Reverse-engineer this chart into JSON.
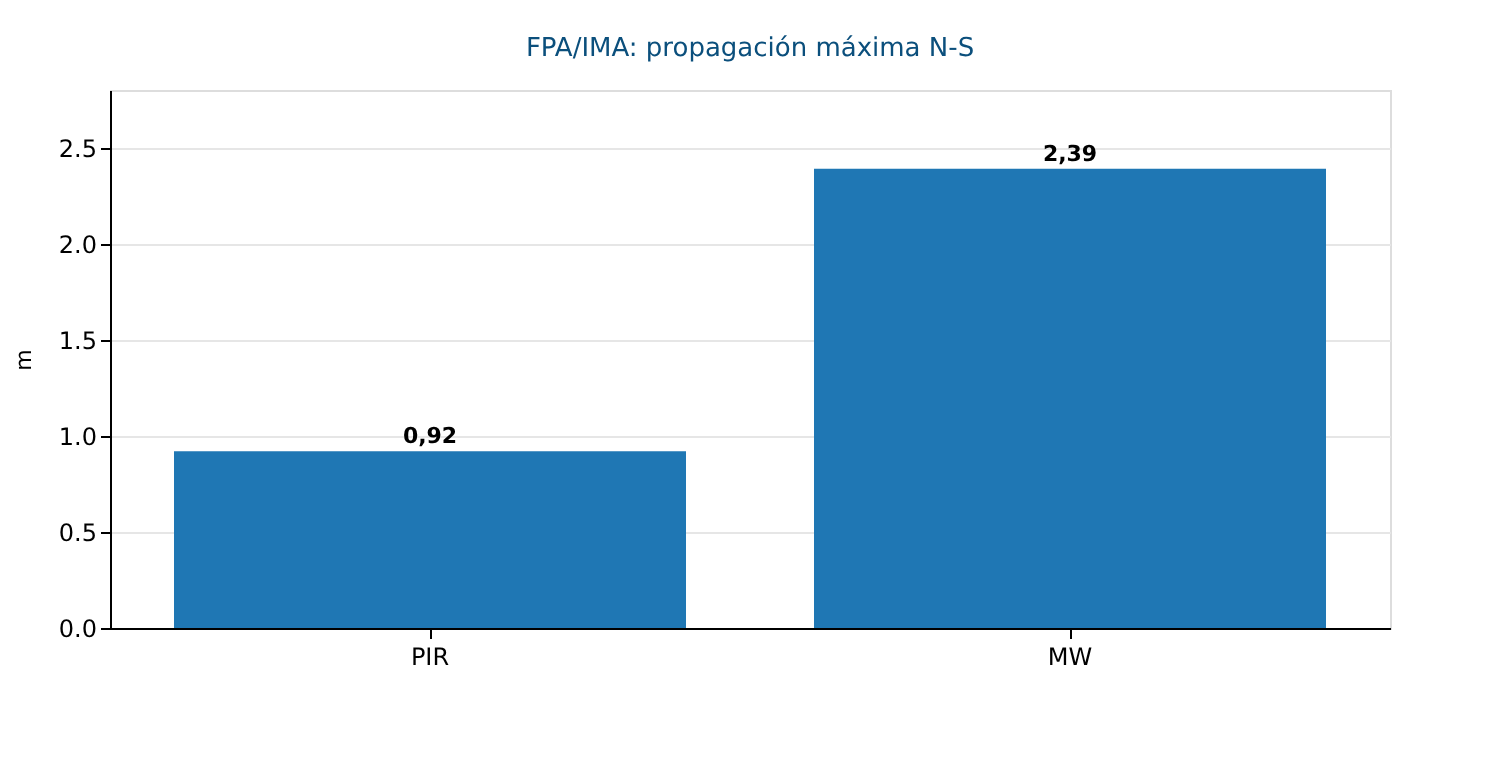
{
  "chart_data": {
    "type": "bar",
    "title": "FPA/IMA: propagación máxima N-S",
    "ylabel": "m",
    "categories": [
      "PIR",
      "MW"
    ],
    "values": [
      0.92,
      2.39
    ],
    "value_labels": [
      "0,92",
      "2,39"
    ],
    "color": "#1f77b4",
    "ylim": [
      0,
      2.8
    ],
    "yticks": [
      {
        "value": 0,
        "label": "0.0"
      },
      0.5,
      {
        "value": 1,
        "label": "1.0"
      },
      1.5,
      {
        "value": 2,
        "label": "2.0"
      },
      2.5
    ],
    "grid": "y"
  }
}
